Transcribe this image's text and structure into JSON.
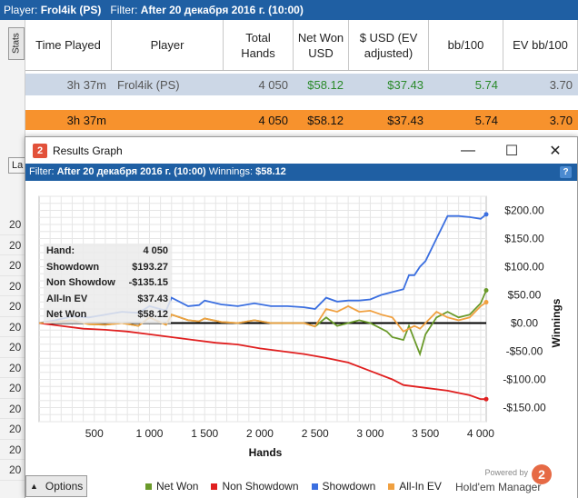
{
  "topbar": {
    "player_label": "Player:",
    "player": "Frol4ik (PS)",
    "filter_label": "Filter:",
    "filter": "After 20 декабря 2016 г. (10:00)"
  },
  "side": {
    "stats_tab": "Stats",
    "la_tab": "La",
    "rows": [
      "20",
      "20",
      "20",
      "20",
      "20",
      "20",
      "20",
      "20",
      "20",
      "20",
      "20",
      "20",
      "20"
    ]
  },
  "table": {
    "headers": [
      "Time Played",
      "Player",
      "Total Hands",
      "Net Won USD",
      "$ USD (EV adjusted)",
      "bb/100",
      "EV bb/100"
    ],
    "rows": [
      [
        "3h 37m",
        "Frol4ik (PS)",
        "4 050",
        "$58.12",
        "$37.43",
        "5.74",
        "3.70"
      ],
      [
        "3h 37m",
        "",
        "4 050",
        "$58.12",
        "$37.43",
        "5.74",
        "3.70"
      ]
    ]
  },
  "window": {
    "title": "Results Graph",
    "logo": "2",
    "filter_label": "Filter:",
    "filter": "After 20 декабря 2016 г. (10:00)",
    "winnings_label": "Winnings:",
    "winnings": "$58.12",
    "help": "?"
  },
  "statbox": [
    {
      "label": "Hand:",
      "value": "4 050"
    },
    {
      "label": "Showdown",
      "value": "$193.27"
    },
    {
      "label": "Non Showdow",
      "value": "-$135.15"
    },
    {
      "label": "All-In EV",
      "value": "$37.43"
    },
    {
      "label": "Net Won",
      "value": "$58.12"
    }
  ],
  "bottom": {
    "options": "Options",
    "powered_small": "Powered by",
    "powered_big": "Hold'em Manager",
    "powered_logo": "2"
  },
  "colors": {
    "net_won": "#6a9a2a",
    "non_showdown": "#e02020",
    "showdown": "#3b6fe0",
    "allin_ev": "#f0a040",
    "titlebar": "#1f5fa3",
    "row_highlight": "#f7922d"
  },
  "chart_data": {
    "type": "line",
    "xlabel": "Hands",
    "ylabel": "Winnings",
    "xlim": [
      0,
      4050
    ],
    "ylim": [
      -175,
      225
    ],
    "xticks": [
      500,
      1000,
      1500,
      2000,
      2500,
      3000,
      3500,
      4000
    ],
    "xtick_labels": [
      "500",
      "1 000",
      "1 500",
      "2 000",
      "2 500",
      "3 000",
      "3 500",
      "4 000"
    ],
    "yticks": [
      200,
      150,
      100,
      50,
      0,
      -50,
      -100,
      -150
    ],
    "ytick_labels": [
      "$200.00",
      "$150.00",
      "$100.00",
      "$50.00",
      "$0.00",
      "-$50.00",
      "-$100.00",
      "-$150.00"
    ],
    "grid": true,
    "legend_position": "bottom",
    "series": [
      {
        "name": "Net Won",
        "color": "#6a9a2a",
        "x": [
          0,
          150,
          300,
          450,
          600,
          750,
          900,
          1000,
          1150,
          1200,
          1350,
          1450,
          1500,
          1650,
          1800,
          1950,
          2100,
          2250,
          2400,
          2500,
          2600,
          2700,
          2800,
          2900,
          3000,
          3100,
          3150,
          3200,
          3300,
          3350,
          3400,
          3450,
          3500,
          3600,
          3700,
          3800,
          3900,
          4000,
          4050
        ],
        "y": [
          0,
          2,
          5,
          -2,
          -3,
          0,
          -5,
          10,
          -3,
          15,
          5,
          3,
          8,
          2,
          0,
          5,
          0,
          0,
          0,
          -6,
          10,
          -5,
          0,
          5,
          0,
          -10,
          -15,
          -25,
          -30,
          -5,
          -30,
          -55,
          -20,
          10,
          20,
          10,
          15,
          35,
          58
        ]
      },
      {
        "name": "Non Showdown",
        "color": "#e02020",
        "x": [
          0,
          200,
          400,
          600,
          800,
          1000,
          1200,
          1400,
          1600,
          1800,
          2000,
          2200,
          2400,
          2600,
          2800,
          3000,
          3200,
          3300,
          3500,
          3700,
          3900,
          4000,
          4050
        ],
        "y": [
          0,
          -5,
          -10,
          -12,
          -15,
          -20,
          -25,
          -30,
          -35,
          -38,
          -45,
          -50,
          -55,
          -62,
          -70,
          -85,
          -100,
          -110,
          -115,
          -120,
          -128,
          -135,
          -135
        ]
      },
      {
        "name": "Showdown",
        "color": "#3b6fe0",
        "x": [
          0,
          150,
          300,
          450,
          600,
          750,
          900,
          1000,
          1150,
          1200,
          1350,
          1450,
          1500,
          1650,
          1800,
          1950,
          2100,
          2250,
          2400,
          2500,
          2600,
          2700,
          2800,
          2900,
          3000,
          3100,
          3200,
          3300,
          3350,
          3400,
          3450,
          3500,
          3600,
          3700,
          3800,
          3900,
          4000,
          4050
        ],
        "y": [
          0,
          5,
          12,
          10,
          15,
          20,
          18,
          30,
          22,
          45,
          30,
          32,
          40,
          33,
          30,
          35,
          30,
          30,
          28,
          25,
          45,
          38,
          40,
          40,
          42,
          50,
          55,
          60,
          85,
          85,
          100,
          110,
          150,
          190,
          190,
          188,
          185,
          193
        ]
      },
      {
        "name": "All-In EV",
        "color": "#f0a040",
        "x": [
          0,
          150,
          300,
          450,
          600,
          750,
          900,
          1000,
          1150,
          1200,
          1350,
          1450,
          1500,
          1650,
          1800,
          1950,
          2100,
          2250,
          2400,
          2500,
          2600,
          2700,
          2800,
          2900,
          3000,
          3100,
          3200,
          3300,
          3350,
          3400,
          3450,
          3500,
          3600,
          3700,
          3800,
          3900,
          4000,
          4050
        ],
        "y": [
          0,
          2,
          5,
          -2,
          -3,
          0,
          -5,
          10,
          -3,
          15,
          5,
          3,
          8,
          2,
          0,
          5,
          0,
          0,
          0,
          -6,
          25,
          20,
          30,
          20,
          22,
          15,
          10,
          -15,
          -10,
          -5,
          -10,
          0,
          20,
          10,
          5,
          10,
          30,
          37
        ]
      }
    ]
  }
}
